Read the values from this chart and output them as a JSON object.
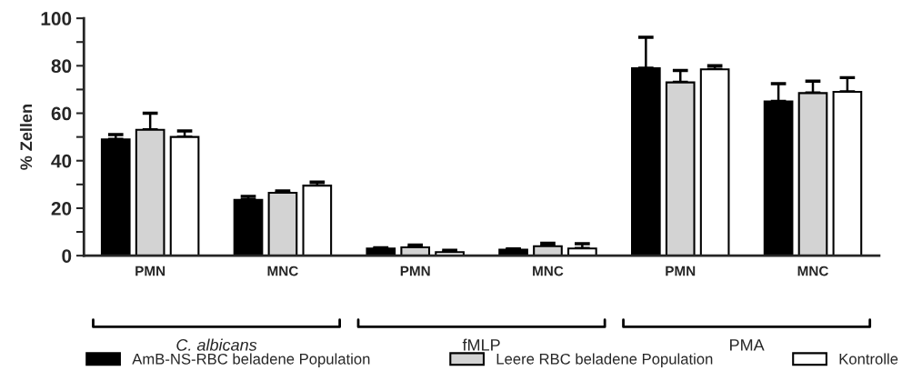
{
  "chart_data": {
    "type": "bar",
    "ylabel": "% Zellen",
    "categories": [
      "PMN",
      "MNC",
      "PMN",
      "MNC",
      "PMN",
      "MNC"
    ],
    "series": [
      {
        "name": "AmB-NS-RBC beladene Population",
        "color": "#000000",
        "values": [
          49,
          23.5,
          3,
          2.5,
          79,
          65
        ],
        "errors": [
          2,
          1.5,
          0.3,
          0.3,
          13,
          7.5
        ]
      },
      {
        "name": "Leere RBC beladene Population",
        "color": "#d3d3d3",
        "values": [
          53,
          26.5,
          3.5,
          4,
          73,
          68.5
        ],
        "errors": [
          7,
          0.8,
          1,
          1.2,
          5,
          5
        ]
      },
      {
        "name": "Kontrolle",
        "color": "#ffffff",
        "values": [
          50,
          29.5,
          1.5,
          3,
          78.5,
          69
        ],
        "errors": [
          2.5,
          1.5,
          0.8,
          2,
          1.5,
          6
        ]
      }
    ],
    "ylim": [
      0,
      100
    ],
    "yticks": [
      0,
      {
        "value": 10,
        "label": null
      },
      20,
      {
        "value": 30,
        "label": null
      },
      40,
      {
        "value": 50,
        "label": null
      },
      60,
      {
        "value": 70,
        "label": null
      },
      80,
      {
        "value": 90,
        "label": null
      },
      100
    ],
    "annotations": [
      "C. albicans",
      "fMLP",
      "PMA"
    ],
    "legend": "bottom",
    "grid": false
  }
}
